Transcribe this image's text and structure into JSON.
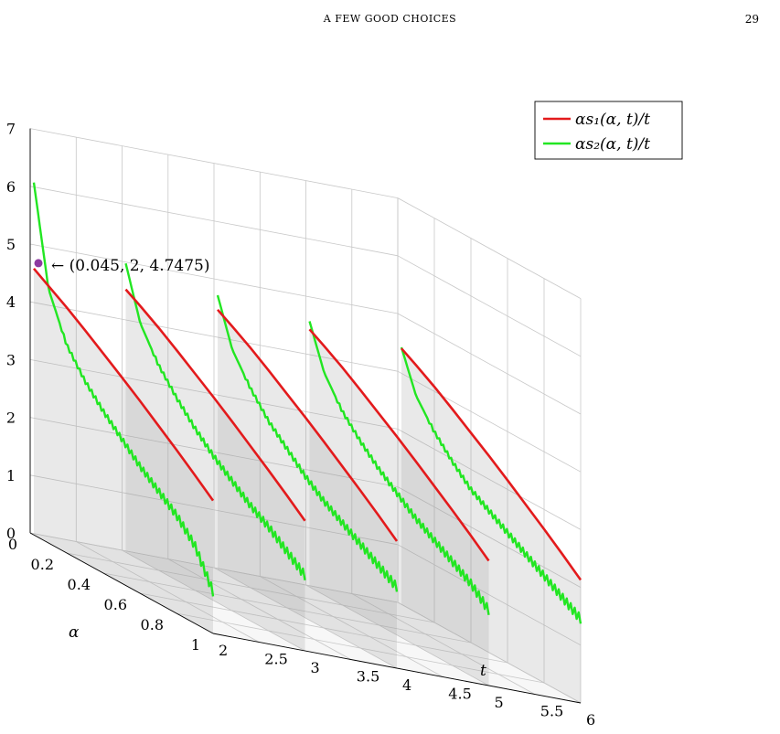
{
  "page": {
    "running_title": "A FEW GOOD CHOICES",
    "page_number": "29"
  },
  "chart_data": {
    "type": "line",
    "projection": "3d",
    "axes": {
      "t": {
        "label": "t",
        "range": [
          2,
          6
        ],
        "ticks": [
          "2",
          "2.5",
          "3",
          "3.5",
          "4",
          "4.5",
          "5",
          "5.5",
          "6"
        ]
      },
      "alpha": {
        "label": "α",
        "range": [
          0,
          1
        ],
        "ticks": [
          "0",
          "0.2",
          "0.4",
          "0.6",
          "0.8",
          "1"
        ]
      },
      "z": {
        "range": [
          0,
          7
        ],
        "ticks": [
          "0",
          "1",
          "2",
          "3",
          "4",
          "5",
          "6",
          "7"
        ]
      }
    },
    "grid": true,
    "legend": {
      "placement": "top-right",
      "entries": [
        {
          "label": "αs₁(α, t)/t",
          "color": "#e31a1c"
        },
        {
          "label": "αs₂(α, t)/t",
          "color": "#22e622"
        }
      ]
    },
    "annotation": {
      "text": "←  (0.045, 2, 4.7475)",
      "point": {
        "alpha": 0.045,
        "t": 2,
        "z": 4.7475
      },
      "marker_color": "#8e3aa0"
    },
    "slices_t": [
      2,
      3,
      4,
      5,
      6
    ],
    "alpha_samples": [
      0.02,
      0.1,
      0.2,
      0.3,
      0.4,
      0.5,
      0.6,
      0.7,
      0.8,
      0.9,
      1.0
    ],
    "series": [
      {
        "name": "αs₁(α, t)/t",
        "color": "#e31a1c",
        "slices": [
          {
            "t": 2,
            "z": [
              4.61,
              4.45,
              4.25,
              4.03,
              3.8,
              3.57,
              3.33,
              3.08,
              2.83,
              2.57,
              2.3
            ]
          },
          {
            "t": 3,
            "z": [
              4.55,
              4.4,
              4.2,
              3.98,
              3.75,
              3.52,
              3.28,
              3.03,
              2.78,
              2.52,
              2.25
            ]
          },
          {
            "t": 4,
            "z": [
              4.5,
              4.35,
              4.15,
              3.93,
              3.7,
              3.47,
              3.23,
              2.98,
              2.73,
              2.47,
              2.2
            ]
          },
          {
            "t": 5,
            "z": [
              4.46,
              4.31,
              4.11,
              3.89,
              3.66,
              3.43,
              3.19,
              2.94,
              2.69,
              2.43,
              2.16
            ]
          },
          {
            "t": 6,
            "z": [
              4.43,
              4.28,
              4.08,
              3.86,
              3.63,
              3.4,
              3.16,
              2.91,
              2.66,
              2.4,
              2.13
            ]
          }
        ]
      },
      {
        "name": "αs₂(α, t)/t",
        "color": "#22e622",
        "slices": [
          {
            "t": 2,
            "z": [
              6.1,
              4.4,
              3.6,
              3.15,
              2.8,
              2.5,
              2.2,
              1.95,
              1.7,
              1.35,
              0.72
            ]
          },
          {
            "t": 3,
            "z": [
              5.0,
              4.1,
              3.55,
              3.15,
              2.8,
              2.5,
              2.25,
              2.0,
              1.8,
              1.55,
              1.3
            ]
          },
          {
            "t": 4,
            "z": [
              4.75,
              3.95,
              3.45,
              3.05,
              2.75,
              2.45,
              2.2,
              2.0,
              1.8,
              1.6,
              1.4
            ]
          },
          {
            "t": 5,
            "z": [
              4.6,
              3.85,
              3.35,
              3.0,
              2.7,
              2.45,
              2.2,
              2.0,
              1.8,
              1.6,
              1.3
            ]
          },
          {
            "t": 6,
            "z": [
              4.45,
              3.75,
              3.3,
              2.95,
              2.65,
              2.45,
              2.25,
              2.05,
              1.85,
              1.65,
              1.45
            ]
          }
        ]
      }
    ]
  }
}
